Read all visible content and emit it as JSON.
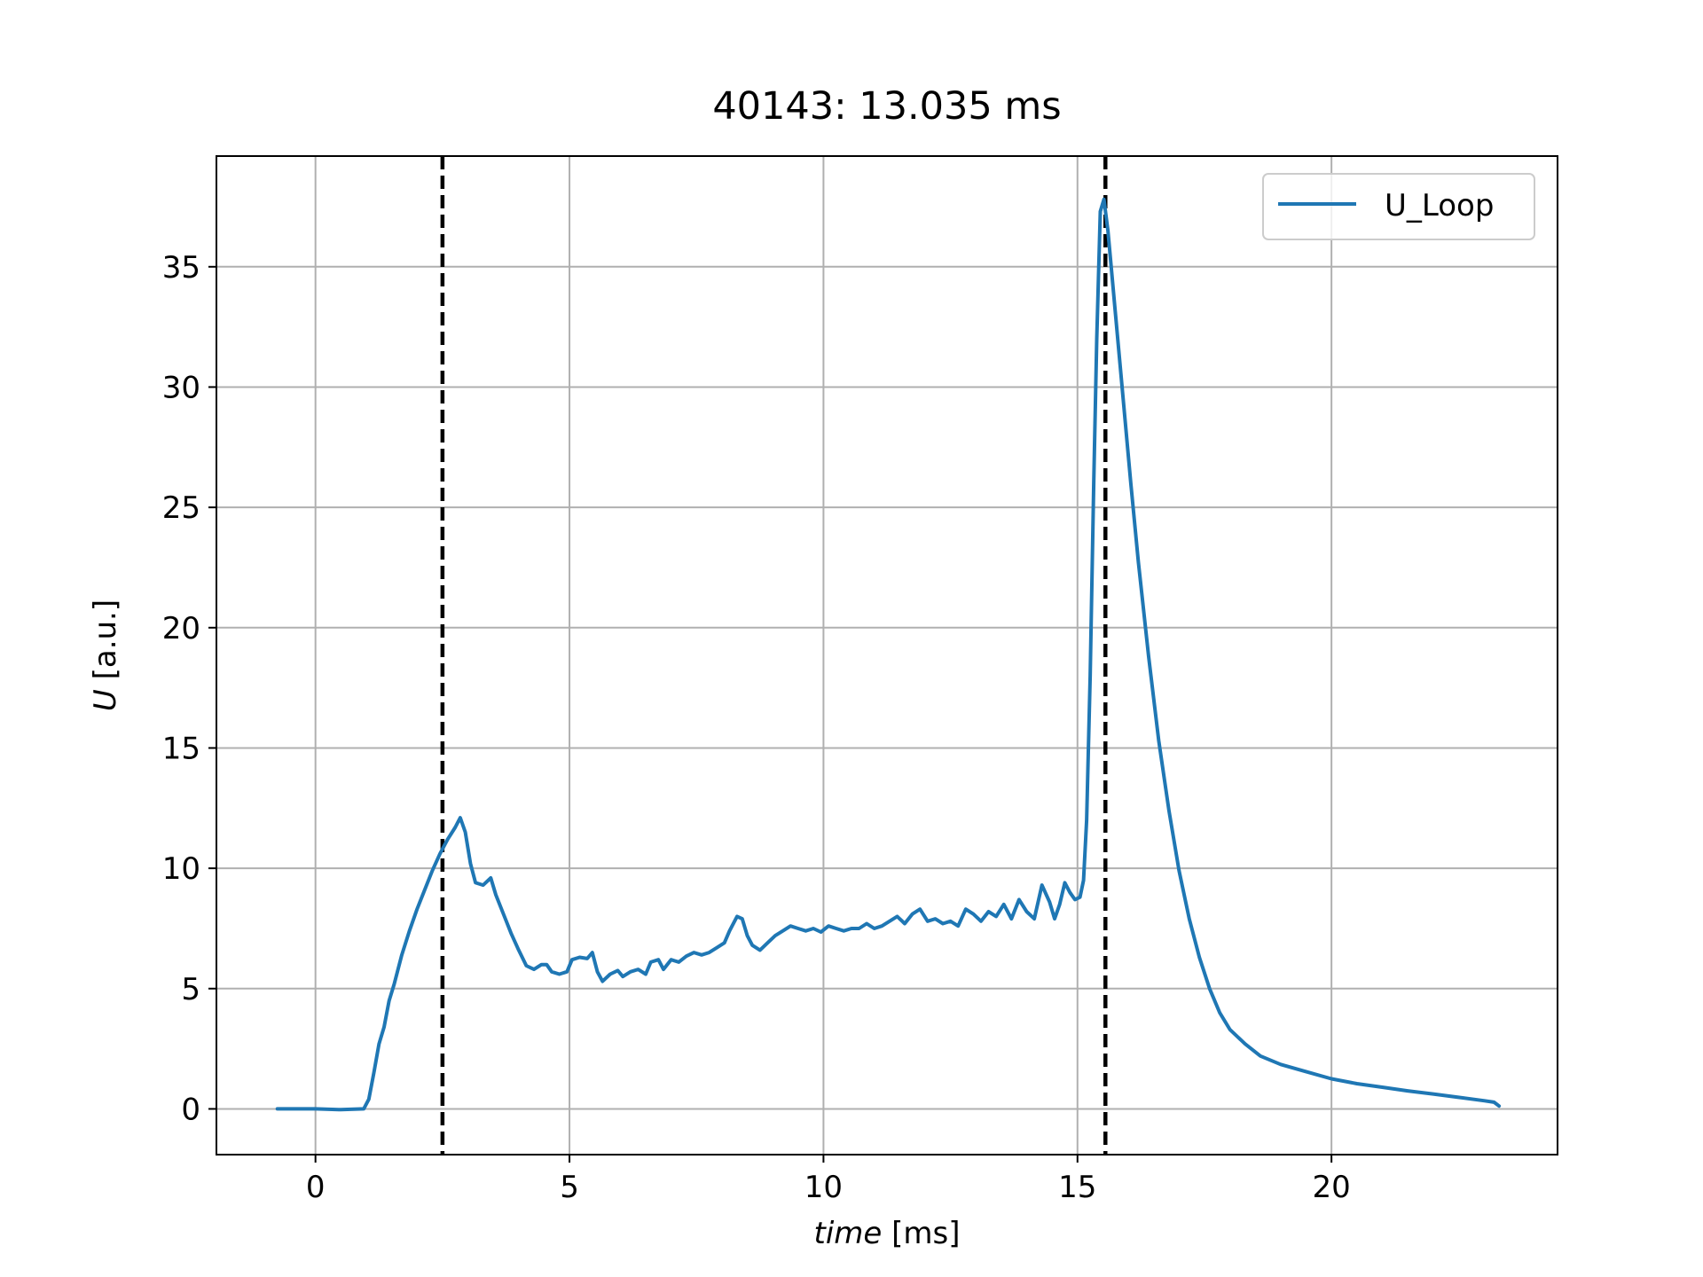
{
  "chart_data": {
    "type": "line",
    "title": "40143: 13.035 ms",
    "xlabel_italic": "time",
    "xlabel_unit": "[ms]",
    "ylabel_italic": "U",
    "ylabel_unit": "[a.u.]",
    "xlim": [
      -1.95,
      24.45
    ],
    "ylim": [
      -1.9,
      39.6
    ],
    "xticks": [
      0,
      5,
      10,
      15,
      20
    ],
    "yticks": [
      0,
      5,
      10,
      15,
      20,
      25,
      30,
      35
    ],
    "grid": true,
    "legend_position": "top-right",
    "vlines": [
      {
        "x": 2.5,
        "style": "dashed",
        "color": "#000000"
      },
      {
        "x": 15.55,
        "style": "dashed",
        "color": "#000000"
      }
    ],
    "series": [
      {
        "name": "U_Loop",
        "color": "#1f77b4",
        "points": [
          [
            -0.75,
            0.0
          ],
          [
            0.0,
            0.0
          ],
          [
            0.5,
            -0.03
          ],
          [
            0.95,
            0.0
          ],
          [
            1.05,
            0.4
          ],
          [
            1.15,
            1.5
          ],
          [
            1.25,
            2.7
          ],
          [
            1.35,
            3.4
          ],
          [
            1.45,
            4.5
          ],
          [
            1.55,
            5.2
          ],
          [
            1.7,
            6.4
          ],
          [
            1.85,
            7.4
          ],
          [
            2.0,
            8.3
          ],
          [
            2.15,
            9.1
          ],
          [
            2.3,
            9.9
          ],
          [
            2.45,
            10.6
          ],
          [
            2.6,
            11.2
          ],
          [
            2.75,
            11.7
          ],
          [
            2.85,
            12.1
          ],
          [
            2.95,
            11.5
          ],
          [
            3.05,
            10.2
          ],
          [
            3.15,
            9.4
          ],
          [
            3.3,
            9.3
          ],
          [
            3.45,
            9.6
          ],
          [
            3.55,
            8.9
          ],
          [
            3.7,
            8.1
          ],
          [
            3.85,
            7.3
          ],
          [
            4.0,
            6.6
          ],
          [
            4.15,
            5.95
          ],
          [
            4.3,
            5.8
          ],
          [
            4.45,
            6.0
          ],
          [
            4.55,
            6.0
          ],
          [
            4.65,
            5.7
          ],
          [
            4.8,
            5.6
          ],
          [
            4.95,
            5.7
          ],
          [
            5.05,
            6.2
          ],
          [
            5.2,
            6.3
          ],
          [
            5.35,
            6.25
          ],
          [
            5.45,
            6.5
          ],
          [
            5.55,
            5.7
          ],
          [
            5.65,
            5.3
          ],
          [
            5.8,
            5.6
          ],
          [
            5.95,
            5.75
          ],
          [
            6.05,
            5.5
          ],
          [
            6.2,
            5.7
          ],
          [
            6.35,
            5.8
          ],
          [
            6.5,
            5.6
          ],
          [
            6.6,
            6.1
          ],
          [
            6.75,
            6.2
          ],
          [
            6.85,
            5.8
          ],
          [
            7.0,
            6.2
          ],
          [
            7.15,
            6.1
          ],
          [
            7.3,
            6.35
          ],
          [
            7.45,
            6.5
          ],
          [
            7.6,
            6.4
          ],
          [
            7.75,
            6.5
          ],
          [
            7.9,
            6.7
          ],
          [
            8.05,
            6.9
          ],
          [
            8.15,
            7.4
          ],
          [
            8.3,
            8.0
          ],
          [
            8.4,
            7.9
          ],
          [
            8.5,
            7.2
          ],
          [
            8.6,
            6.8
          ],
          [
            8.75,
            6.6
          ],
          [
            8.9,
            6.9
          ],
          [
            9.05,
            7.2
          ],
          [
            9.2,
            7.4
          ],
          [
            9.35,
            7.6
          ],
          [
            9.5,
            7.5
          ],
          [
            9.65,
            7.4
          ],
          [
            9.8,
            7.5
          ],
          [
            9.95,
            7.35
          ],
          [
            10.1,
            7.6
          ],
          [
            10.25,
            7.5
          ],
          [
            10.4,
            7.4
          ],
          [
            10.55,
            7.5
          ],
          [
            10.7,
            7.5
          ],
          [
            10.85,
            7.7
          ],
          [
            11.0,
            7.5
          ],
          [
            11.15,
            7.6
          ],
          [
            11.3,
            7.8
          ],
          [
            11.45,
            8.0
          ],
          [
            11.6,
            7.7
          ],
          [
            11.75,
            8.1
          ],
          [
            11.9,
            8.3
          ],
          [
            12.05,
            7.8
          ],
          [
            12.2,
            7.9
          ],
          [
            12.35,
            7.7
          ],
          [
            12.5,
            7.8
          ],
          [
            12.65,
            7.6
          ],
          [
            12.8,
            8.3
          ],
          [
            12.95,
            8.1
          ],
          [
            13.1,
            7.8
          ],
          [
            13.25,
            8.2
          ],
          [
            13.4,
            8.0
          ],
          [
            13.55,
            8.5
          ],
          [
            13.7,
            7.9
          ],
          [
            13.85,
            8.7
          ],
          [
            14.0,
            8.2
          ],
          [
            14.15,
            7.9
          ],
          [
            14.3,
            9.3
          ],
          [
            14.45,
            8.6
          ],
          [
            14.55,
            7.9
          ],
          [
            14.65,
            8.5
          ],
          [
            14.75,
            9.4
          ],
          [
            14.85,
            9.0
          ],
          [
            14.95,
            8.7
          ],
          [
            15.05,
            8.8
          ],
          [
            15.12,
            9.5
          ],
          [
            15.18,
            12.0
          ],
          [
            15.25,
            18.0
          ],
          [
            15.32,
            26.0
          ],
          [
            15.38,
            32.0
          ],
          [
            15.45,
            37.3
          ],
          [
            15.52,
            37.8
          ],
          [
            15.6,
            36.5
          ],
          [
            15.75,
            33.0
          ],
          [
            15.9,
            29.5
          ],
          [
            16.05,
            26.0
          ],
          [
            16.2,
            22.7
          ],
          [
            16.4,
            18.8
          ],
          [
            16.6,
            15.3
          ],
          [
            16.8,
            12.4
          ],
          [
            17.0,
            9.9
          ],
          [
            17.2,
            7.9
          ],
          [
            17.4,
            6.3
          ],
          [
            17.6,
            5.0
          ],
          [
            17.8,
            4.0
          ],
          [
            18.0,
            3.3
          ],
          [
            18.3,
            2.7
          ],
          [
            18.6,
            2.2
          ],
          [
            19.0,
            1.85
          ],
          [
            19.5,
            1.55
          ],
          [
            20.0,
            1.25
          ],
          [
            20.5,
            1.05
          ],
          [
            21.0,
            0.9
          ],
          [
            21.5,
            0.75
          ],
          [
            22.0,
            0.62
          ],
          [
            22.5,
            0.48
          ],
          [
            23.0,
            0.34
          ],
          [
            23.2,
            0.28
          ],
          [
            23.3,
            0.12
          ]
        ]
      }
    ]
  }
}
